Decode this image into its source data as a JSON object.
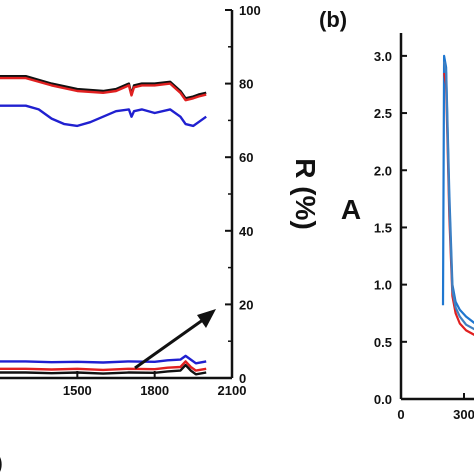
{
  "chart_data": [
    {
      "panel": "a (partial, left panel cropped)",
      "panel_label": "(a)",
      "type": "line",
      "xlim": [
        1200,
        2100
      ],
      "x_ticks": [
        1500,
        1800,
        2100
      ],
      "x_tick_labels": [
        "1500",
        "1800",
        "2100"
      ],
      "y_right_lim": [
        0,
        100
      ],
      "y_right_ticks": [
        0,
        20,
        40,
        60,
        80,
        100
      ],
      "y_right_tick_labels": [
        "0",
        "20",
        "40",
        "60",
        "80",
        "100"
      ],
      "y_right_label": "R (%)",
      "annotation": "arrow",
      "series": [
        {
          "color": "#111111",
          "x": [
            1200,
            1300,
            1400,
            1500,
            1600,
            1650,
            1700,
            1710,
            1720,
            1750,
            1800,
            1860,
            1900,
            1920,
            1950,
            1970,
            2000
          ],
          "values": [
            82,
            82,
            80,
            78.5,
            78,
            78.5,
            80,
            77,
            79.5,
            80,
            80,
            80.5,
            78,
            76,
            76.5,
            77,
            77.5
          ]
        },
        {
          "color": "#e02020",
          "x": [
            1200,
            1300,
            1400,
            1500,
            1600,
            1650,
            1700,
            1710,
            1720,
            1750,
            1800,
            1860,
            1900,
            1920,
            1950,
            1970,
            2000
          ],
          "values": [
            81.5,
            81.5,
            79.5,
            78,
            77.5,
            78,
            79.5,
            76.8,
            79,
            79.5,
            79.5,
            80,
            77.5,
            75.5,
            76,
            76.5,
            77
          ]
        },
        {
          "color": "#2020d0",
          "x": [
            1200,
            1300,
            1350,
            1400,
            1450,
            1500,
            1550,
            1600,
            1650,
            1700,
            1710,
            1720,
            1750,
            1800,
            1860,
            1900,
            1920,
            1950,
            1970,
            2000
          ],
          "values": [
            74,
            74,
            73,
            70.5,
            69,
            68.5,
            69.5,
            71,
            72.5,
            73,
            71,
            72.5,
            73,
            72,
            73,
            71,
            69,
            68.5,
            69.5,
            71
          ]
        },
        {
          "color": "#2020d0",
          "x": [
            1200,
            1300,
            1400,
            1500,
            1600,
            1700,
            1800,
            1850,
            1900,
            1920,
            1940,
            1960,
            2000
          ],
          "values": [
            4.5,
            4.5,
            4.3,
            4.4,
            4.2,
            4.5,
            4.4,
            4.8,
            5,
            6,
            5,
            4,
            4.5
          ]
        },
        {
          "color": "#e02020",
          "x": [
            1200,
            1300,
            1400,
            1500,
            1600,
            1700,
            1800,
            1850,
            1900,
            1920,
            1940,
            1960,
            2000
          ],
          "values": [
            2.5,
            2.5,
            2.3,
            2.5,
            2.2,
            2.5,
            2.4,
            2.8,
            3,
            4.5,
            3,
            2,
            2.5
          ]
        },
        {
          "color": "#111111",
          "x": [
            1200,
            1300,
            1400,
            1500,
            1600,
            1700,
            1800,
            1850,
            1900,
            1920,
            1940,
            1960,
            2000
          ],
          "values": [
            1.5,
            1.5,
            1.3,
            1.5,
            1.2,
            1.5,
            1.4,
            1.8,
            2,
            3.5,
            2,
            1,
            1.5
          ]
        }
      ]
    },
    {
      "panel": "b (partial, right side cropped)",
      "panel_label": "(b)",
      "type": "line",
      "y_label": "A",
      "ylim": [
        0,
        3.2
      ],
      "y_ticks": [
        0,
        0.5,
        1.0,
        1.5,
        2.0,
        2.5,
        3.0
      ],
      "y_tick_labels": [
        "0.0",
        "0.5",
        "1.0",
        "1.5",
        "2.0",
        "2.5",
        "3.0"
      ],
      "x_ticks": [
        0,
        300
      ],
      "x_tick_labels": [
        "0",
        "300"
      ],
      "series": [
        {
          "color": "#1f77d0",
          "x": [
            200,
            205,
            215,
            230,
            245,
            260,
            280,
            310,
            360
          ],
          "values": [
            0.82,
            3.0,
            2.9,
            1.8,
            1.0,
            0.85,
            0.78,
            0.72,
            0.65
          ]
        },
        {
          "color": "#e02020",
          "x": [
            205,
            215,
            230,
            245,
            260,
            280,
            310,
            360
          ],
          "values": [
            2.85,
            2.75,
            1.6,
            0.9,
            0.75,
            0.66,
            0.6,
            0.55
          ]
        },
        {
          "color": "#4080c0",
          "x": [
            205,
            215,
            230,
            245,
            260,
            280,
            310,
            360
          ],
          "values": [
            2.95,
            2.85,
            1.7,
            0.95,
            0.8,
            0.72,
            0.65,
            0.6
          ]
        }
      ]
    }
  ]
}
